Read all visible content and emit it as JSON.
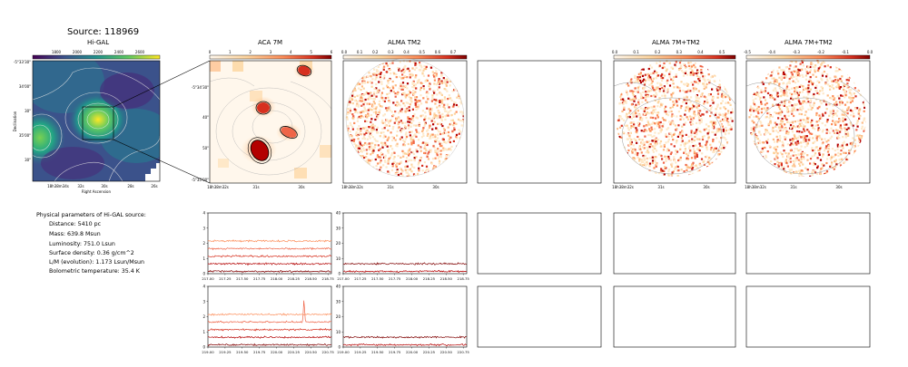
{
  "page": {
    "title": "Source: 118969"
  },
  "panels": {
    "higal_title": "Hi-GAL",
    "aca_title": "ACA 7M",
    "alma_tm2_title": "ALMA TM2",
    "alma_7m_tm2_title_a": "ALMA 7M+TM2",
    "alma_7m_tm2_title_b": "ALMA 7M+TM2"
  },
  "colorbars": {
    "higal_ticks": [
      "1800",
      "2000",
      "2200",
      "2400",
      "2600"
    ],
    "aca_ticks": [
      "0",
      "1",
      "2",
      "3",
      "4",
      "5",
      "6"
    ],
    "tm2_ticks": [
      "0.0",
      "0.1",
      "0.2",
      "0.3",
      "0.4",
      "0.5",
      "0.6",
      "0.7"
    ],
    "combo_a_ticks": [
      "0.0",
      "0.1",
      "0.2",
      "0.3",
      "0.4",
      "0.5"
    ],
    "combo_b_ticks": [
      "-0.5",
      "-0.4",
      "-0.3",
      "-0.2",
      "-0.1",
      "0.0"
    ]
  },
  "higal_axes": {
    "ylabel": "Declination",
    "xlabel": "Right Ascension",
    "yticks": [
      "-5°33'30\"",
      "34'00\"",
      "30\"",
      "35'00\"",
      "30\""
    ],
    "xticks": [
      "18h38m34s",
      "32s",
      "30s",
      "28s",
      "26s"
    ]
  },
  "aca_axes": {
    "yticks": [
      "-5°34'30\"",
      "40\"",
      "50\"",
      "-5°35'00\""
    ],
    "xticks": [
      "18h38m32s",
      "31s",
      "30s"
    ]
  },
  "tm2_axes": {
    "xticks": [
      "18h38m32s",
      "31s",
      "30s"
    ]
  },
  "combo_axes": {
    "xticks_a": [
      "18h38m32s",
      "31s",
      "30s"
    ],
    "xticks_b": [
      "18h38m32s",
      "31s",
      "30s"
    ]
  },
  "info": {
    "heading": "Physical parameters of Hi-GAL source:",
    "distance": "Distance: 5410 pc",
    "mass": "Mass: 639.8 Msun",
    "luminosity": "Luminosity: 751.0 Lsun",
    "surface_density": "Surface density: 0.36 g/cm^2",
    "lm": "L/M (evolution): 1.173 Lsun/Msun",
    "tbol": "Bolometric temperature: 35.4 K"
  },
  "colors": {
    "spec_dark": "#7f0000",
    "spec_mid": "#b30000",
    "spec_red": "#d7301f",
    "spec_orange": "#ef6548",
    "spec_light": "#fc8d59"
  },
  "chart_data": [
    {
      "type": "line",
      "panel": "ACA 7M spectrum, upper",
      "xlim": [
        217.0,
        218.8
      ],
      "ylim": [
        0,
        4
      ],
      "xticks": [
        "217.00",
        "217.25",
        "217.50",
        "217.75",
        "218.00",
        "218.25",
        "218.50",
        "218.75"
      ],
      "yticks": [
        "0",
        "1",
        "2",
        "3",
        "4"
      ],
      "series_offsets": [
        0,
        0.5,
        1.0,
        1.5,
        2.0
      ]
    },
    {
      "type": "line",
      "panel": "ALMA TM2 spectrum, upper",
      "xlim": [
        217.0,
        218.8
      ],
      "ylim": [
        0,
        40
      ],
      "xticks": [
        "217.00",
        "217.25",
        "217.50",
        "217.75",
        "218.00",
        "218.25",
        "218.50",
        "218.75"
      ],
      "yticks": [
        "0",
        "10",
        "20",
        "30",
        "40"
      ],
      "series_offsets": [
        0,
        5
      ]
    },
    {
      "type": "line",
      "panel": "ACA 7M spectrum, lower",
      "xlim": [
        219.0,
        220.8
      ],
      "ylim": [
        0,
        4
      ],
      "xticks": [
        "219.00",
        "219.25",
        "219.50",
        "219.75",
        "220.00",
        "220.25",
        "220.50",
        "220.75"
      ],
      "yticks": [
        "0",
        "1",
        "2",
        "3",
        "4"
      ],
      "series_offsets": [
        0,
        0.5,
        1.0,
        1.5,
        2.0
      ],
      "line_peaks": [
        {
          "x": 220.4,
          "height": 1.5
        }
      ]
    },
    {
      "type": "line",
      "panel": "ALMA TM2 spectrum, lower",
      "xlim": [
        219.0,
        220.8
      ],
      "ylim": [
        0,
        40
      ],
      "xticks": [
        "219.00",
        "219.25",
        "219.50",
        "219.75",
        "220.00",
        "220.25",
        "220.50",
        "220.75"
      ],
      "yticks": [
        "0",
        "10",
        "20",
        "30",
        "40"
      ],
      "series_offsets": [
        0,
        5
      ]
    }
  ]
}
